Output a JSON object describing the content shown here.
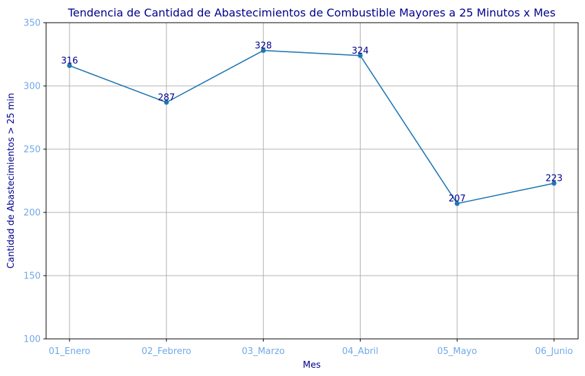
{
  "chart_data": {
    "type": "line",
    "title": "Tendencia de Cantidad de Abastecimientos de Combustible Mayores a 25 Minutos x Mes",
    "xlabel": "Mes",
    "ylabel": "Cantidad de Abastecimientos > 25 min",
    "categories": [
      "01_Enero",
      "02_Febrero",
      "03_Marzo",
      "04_Abril",
      "05_Mayo",
      "06_Junio"
    ],
    "values": [
      316,
      287,
      328,
      324,
      207,
      223
    ],
    "ylim": [
      100,
      350
    ],
    "yticks": [
      100,
      150,
      200,
      250,
      300,
      350
    ],
    "grid": true,
    "legend": "none",
    "colors": {
      "line": "#1f77b4",
      "title": "#00008b",
      "ticks": "#6fa8e8",
      "grid": "#b0b0b0"
    }
  }
}
